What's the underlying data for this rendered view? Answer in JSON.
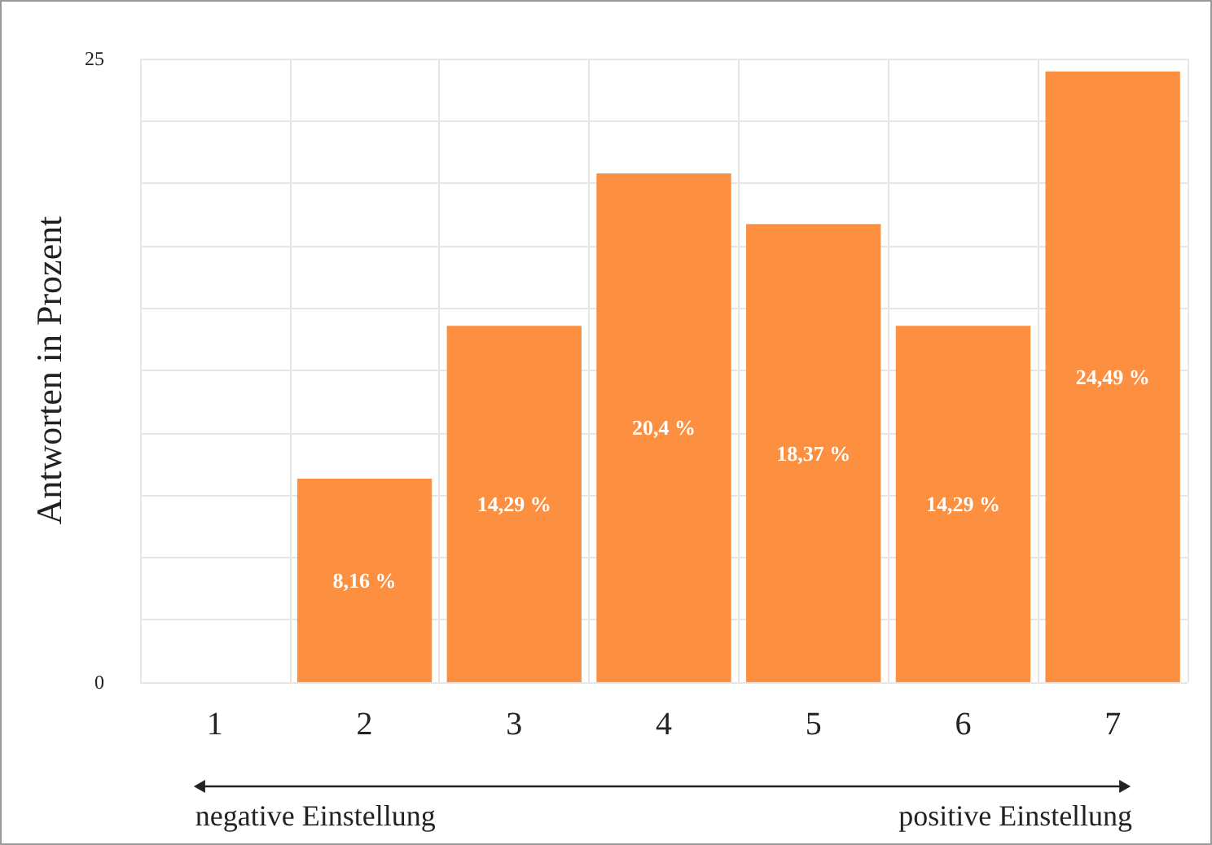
{
  "chart_data": {
    "type": "bar",
    "ylabel": "Antworten in Prozent",
    "categories": [
      "1",
      "2",
      "3",
      "4",
      "5",
      "6",
      "7"
    ],
    "values": [
      0,
      8.16,
      14.29,
      20.4,
      18.37,
      14.29,
      24.49
    ],
    "value_labels": [
      null,
      "8,16 %",
      "14,29 %",
      "20,4 %",
      "18,37 %",
      "14,29 %",
      "24,49 %"
    ],
    "color": "#fd8f40",
    "ylim": [
      0,
      25
    ],
    "yticks": [
      0,
      {
        "value": 2.5,
        "label": null
      },
      {
        "value": 5,
        "label": null
      },
      {
        "value": 7.5,
        "label": null
      },
      {
        "value": 10,
        "label": null
      },
      {
        "value": 12.5,
        "label": null
      },
      {
        "value": 15,
        "label": null
      },
      {
        "value": 17.5,
        "label": null
      },
      {
        "value": 20,
        "label": null
      },
      {
        "value": 22.5,
        "label": null
      },
      25
    ],
    "grid": true,
    "annotations": [
      "negative Einstellung",
      "positive Einstellung"
    ]
  }
}
